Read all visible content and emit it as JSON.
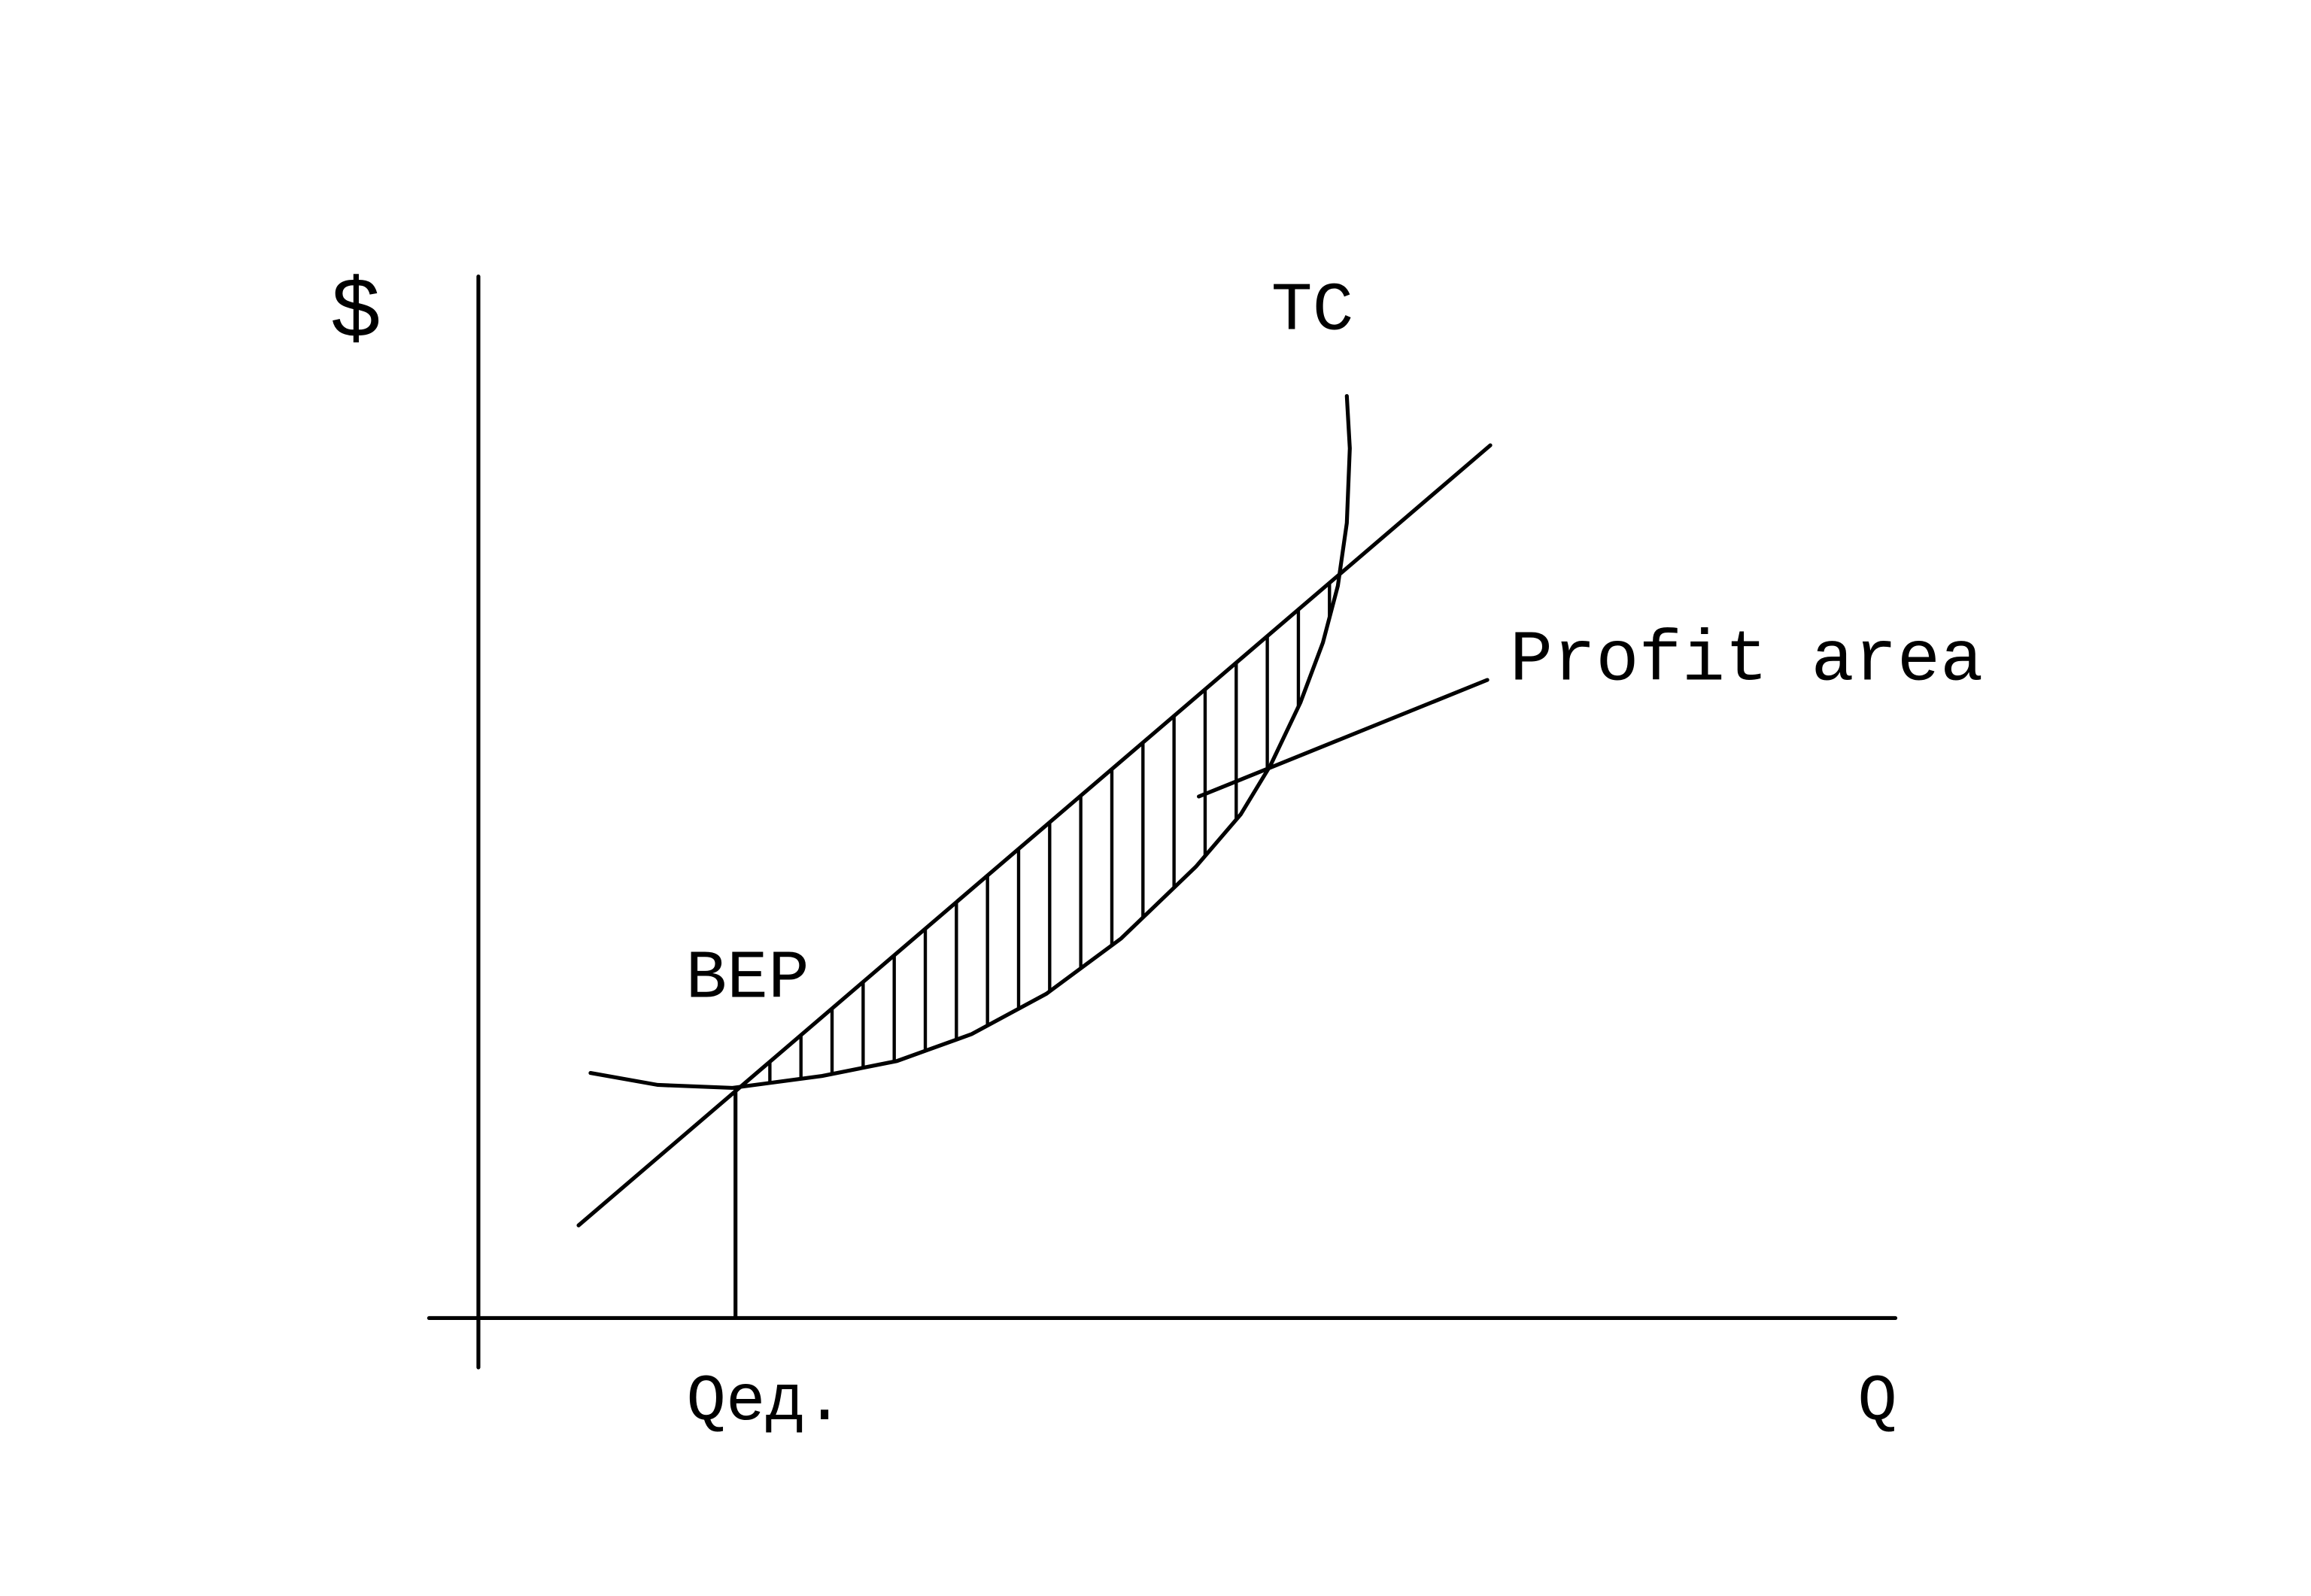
{
  "labels": {
    "y_axis": "$",
    "curve": "TC",
    "pointer": "Profit area",
    "point": "BEP",
    "x_point": "Qед.",
    "x_axis": "Q"
  }
}
